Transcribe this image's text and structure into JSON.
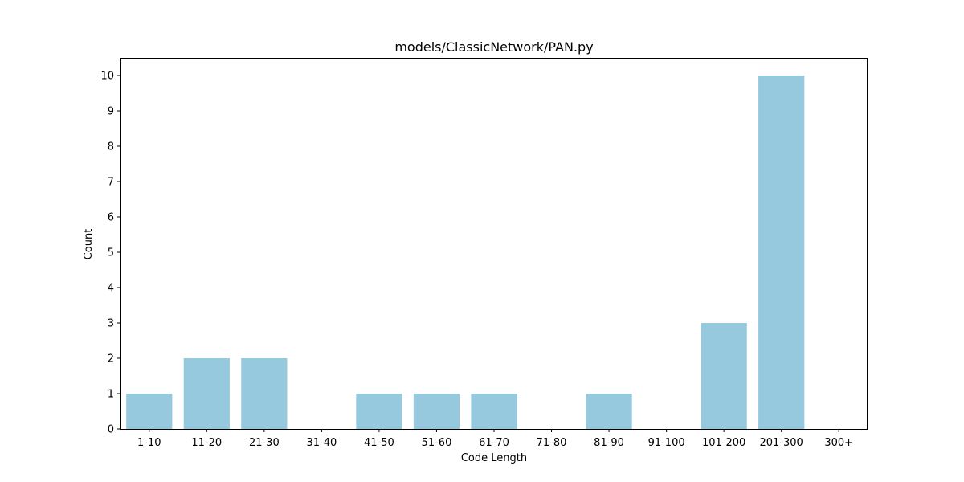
{
  "chart_data": {
    "type": "bar",
    "title": "models/ClassicNetwork/PAN.py",
    "xlabel": "Code Length",
    "ylabel": "Count",
    "categories": [
      "1-10",
      "11-20",
      "21-30",
      "31-40",
      "41-50",
      "51-60",
      "61-70",
      "71-80",
      "81-90",
      "91-100",
      "101-200",
      "201-300",
      "300+"
    ],
    "values": [
      1,
      2,
      2,
      0,
      1,
      1,
      1,
      0,
      1,
      0,
      3,
      10,
      0
    ],
    "ylim": [
      0,
      10.5
    ],
    "yticks": [
      0,
      1,
      2,
      3,
      4,
      5,
      6,
      7,
      8,
      9,
      10
    ],
    "bar_color": "#96c9dd",
    "grid": false,
    "legend": "none"
  }
}
